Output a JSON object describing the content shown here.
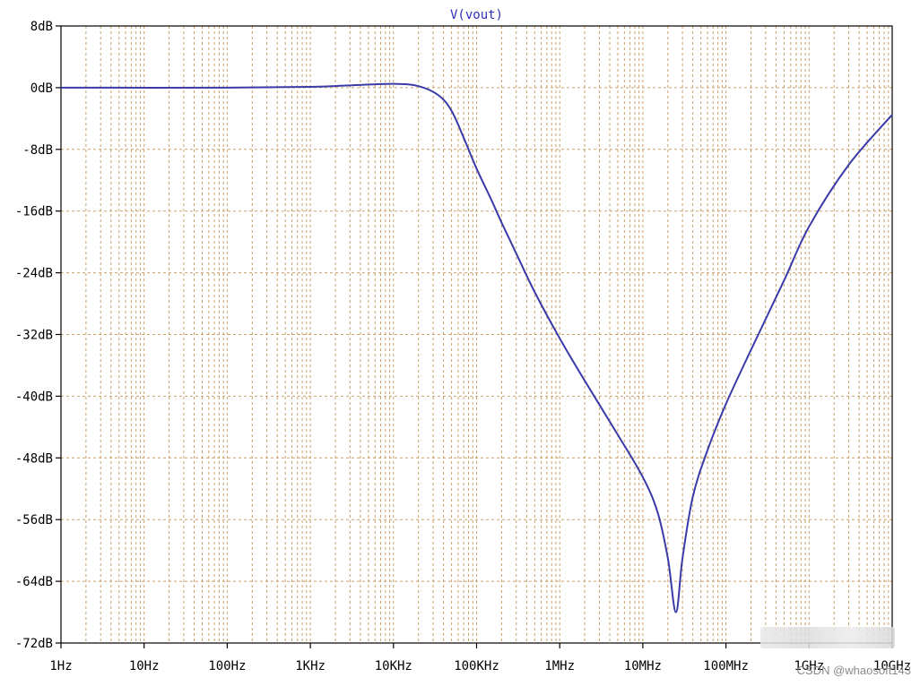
{
  "chart_data": {
    "type": "line",
    "title": "V(vout)",
    "xscale": "log",
    "xlim": [
      1,
      10000000000
    ],
    "ylim": [
      -72,
      8
    ],
    "x_ticks": [
      1,
      10,
      100,
      1000,
      10000,
      100000,
      1000000,
      10000000,
      100000000,
      1000000000,
      10000000000
    ],
    "x_tick_labels": [
      "1Hz",
      "10Hz",
      "100Hz",
      "1KHz",
      "10KHz",
      "100KHz",
      "1MHz",
      "10MHz",
      "100MHz",
      "1GHz",
      "10GHz"
    ],
    "y_ticks": [
      8,
      0,
      -8,
      -16,
      -24,
      -32,
      -40,
      -48,
      -56,
      -64,
      -72
    ],
    "y_tick_labels": [
      "8dB",
      "0dB",
      "-8dB",
      "-16dB",
      "-24dB",
      "-32dB",
      "-40dB",
      "-48dB",
      "-56dB",
      "-64dB",
      "-72dB"
    ],
    "grid": true,
    "series": [
      {
        "color": "#3a3aa8",
        "points": [
          [
            1,
            0
          ],
          [
            100,
            0
          ],
          [
            1000,
            0.1
          ],
          [
            3000,
            0.3
          ],
          [
            10000,
            0.5
          ],
          [
            20000,
            0.2
          ],
          [
            35000,
            -1
          ],
          [
            50000,
            -3
          ],
          [
            70000,
            -6.5
          ],
          [
            100000,
            -10.5
          ],
          [
            150000,
            -14.5
          ],
          [
            200000,
            -17.5
          ],
          [
            300000,
            -21.5
          ],
          [
            500000,
            -26.5
          ],
          [
            1000000,
            -32.5
          ],
          [
            2000000,
            -38
          ],
          [
            5000000,
            -45
          ],
          [
            10000000,
            -50.5
          ],
          [
            15000000,
            -55
          ],
          [
            20000000,
            -61
          ],
          [
            25000000,
            -68
          ],
          [
            30000000,
            -61
          ],
          [
            40000000,
            -53
          ],
          [
            60000000,
            -47
          ],
          [
            100000000,
            -41
          ],
          [
            200000000,
            -34
          ],
          [
            500000000,
            -25
          ],
          [
            1000000000,
            -18
          ],
          [
            3000000000,
            -10
          ],
          [
            10000000000,
            -3.5
          ]
        ]
      }
    ],
    "grid_color": "#c9a06a"
  },
  "watermark": "CSDN @whaosoft143"
}
